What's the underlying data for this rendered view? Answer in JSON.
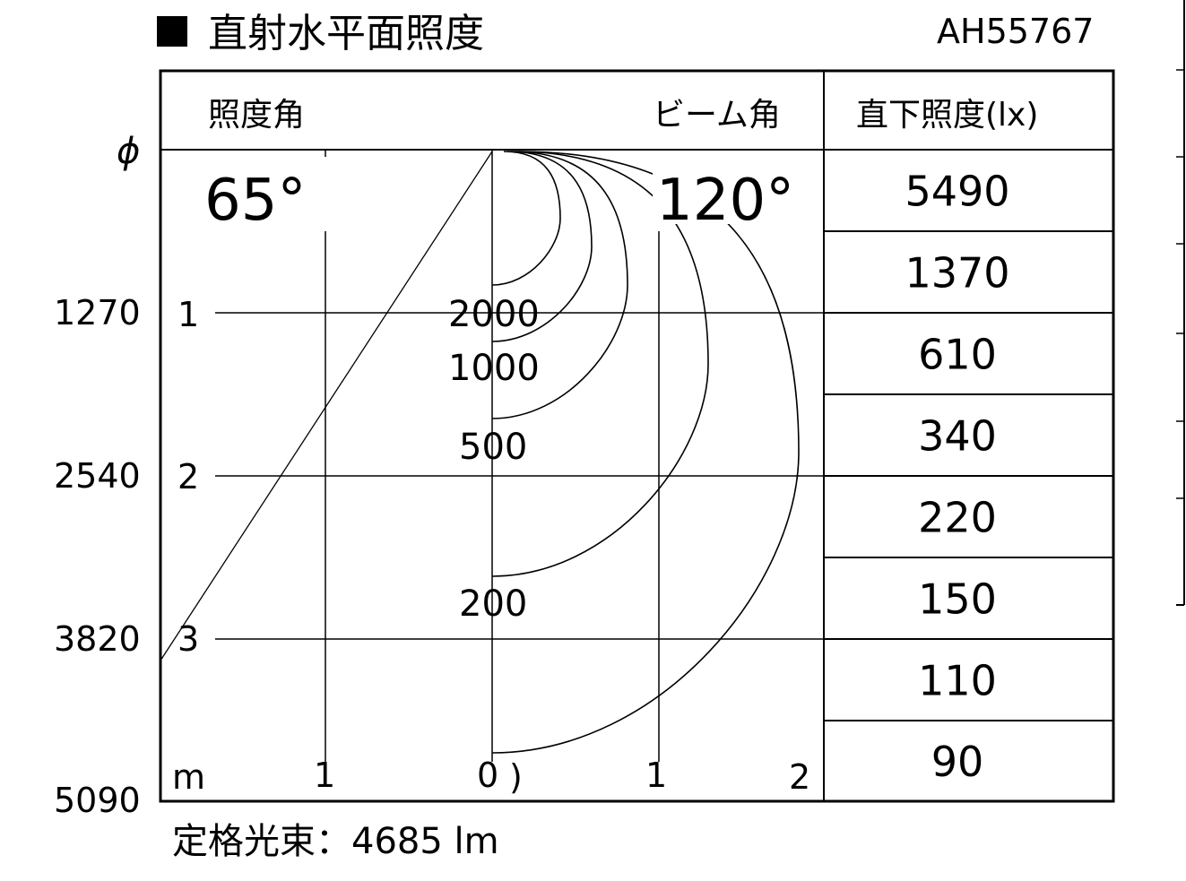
{
  "title": {
    "marker": "■",
    "text": "直射水平面照度",
    "model": "AH55767"
  },
  "header": {
    "illuminance_angle_label": "照度角",
    "beam_angle_label": "ビーム角",
    "direct_lux_label": "直下照度(lx)"
  },
  "illuminance_angle": "65°",
  "beam_angle": "120°",
  "phi_symbol": "ϕ",
  "diameters": [
    "1270",
    "2540",
    "3820",
    "5090"
  ],
  "distance_ticks": [
    "1",
    "2",
    "3"
  ],
  "horizontal_ticks": {
    "unit": "m",
    "left": [
      "1"
    ],
    "center": "0",
    "center_fragment": ")",
    "right": [
      "1",
      "2"
    ]
  },
  "contour_levels": [
    "2000",
    "1000",
    "500",
    "200"
  ],
  "direct_lux_values": [
    "5490",
    "1370",
    "610",
    "340",
    "220",
    "150",
    "110",
    "90"
  ],
  "footer": {
    "rated_flux": "定格光束：4685 lm"
  }
}
